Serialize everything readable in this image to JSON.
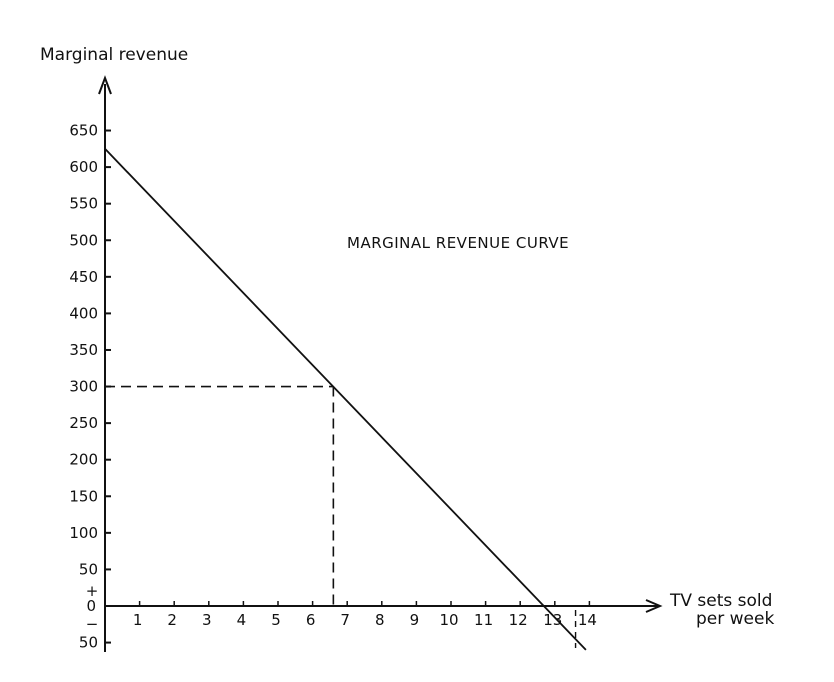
{
  "chart_data": {
    "type": "line",
    "title": "",
    "ylabel": "Marginal revenue",
    "xlabel_lines": [
      "TV sets sold",
      "per week"
    ],
    "annotation": "MARGINAL REVENUE CURVE",
    "x_ticks": [
      "1",
      "2",
      "3",
      "4",
      "5",
      "6",
      "7",
      "8",
      "9",
      "10",
      "11",
      "12",
      "13",
      "14"
    ],
    "y_ticks": [
      {
        "value": 650,
        "label": "650"
      },
      {
        "value": 600,
        "label": "600"
      },
      {
        "value": 550,
        "label": "550"
      },
      {
        "value": 500,
        "label": "500"
      },
      {
        "value": 450,
        "label": "450"
      },
      {
        "value": 400,
        "label": "400"
      },
      {
        "value": 350,
        "label": "350"
      },
      {
        "value": 300,
        "label": "300"
      },
      {
        "value": 250,
        "label": "250"
      },
      {
        "value": 200,
        "label": "200"
      },
      {
        "value": 150,
        "label": "150"
      },
      {
        "value": 100,
        "label": "100"
      },
      {
        "value": 50,
        "label": "50"
      },
      {
        "value": -50,
        "label": "50"
      }
    ],
    "zero_label": "0",
    "plus_sign": "+",
    "minus_sign": "−",
    "xlim": [
      0,
      15
    ],
    "ylim": [
      -60,
      700
    ],
    "series": [
      {
        "x": [
          0,
          13.9
        ],
        "y": [
          625,
          -60
        ]
      }
    ],
    "reference_point": {
      "x": 6.6,
      "y": 300
    },
    "reference_vline_x": 13.6,
    "grid": false,
    "color": "#111111"
  }
}
